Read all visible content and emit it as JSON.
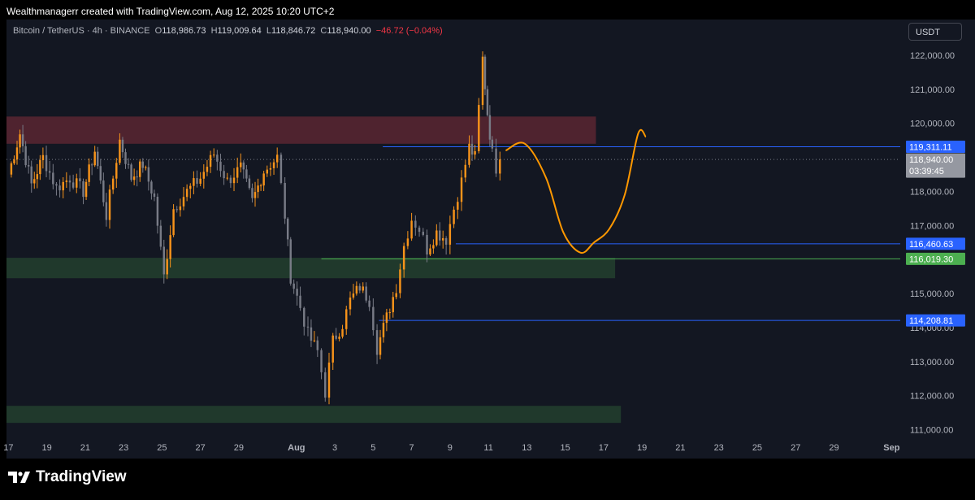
{
  "header": {
    "attribution": "Wealthmanagerr created with TradingView.com, Aug 12, 2025 10:20 UTC+2"
  },
  "legend": {
    "symbol": "Bitcoin / TetherUS · 4h · BINANCE",
    "open_label": "O",
    "open": "118,986.73",
    "high_label": "H",
    "high": "119,009.64",
    "low_label": "L",
    "low": "118,846.72",
    "close_label": "C",
    "close": "118,940.00",
    "change": "−46.72 (−0.04%)"
  },
  "currency_button": "USDT",
  "footer": {
    "brand": "TradingView"
  },
  "colors": {
    "background": "#131722",
    "up_candle": "#f7931a",
    "down_candle": "#787b86",
    "resistance_zone": "#5a2631",
    "support_zone": "#233f2e",
    "blue_line": "#2962ff",
    "green_line": "#4caf50",
    "projection": "#ff9800"
  },
  "chart_data": {
    "type": "candlestick",
    "title": "Bitcoin / TetherUS · 4h · BINANCE",
    "y_axis": {
      "range": [
        110750,
        123050
      ],
      "ticks": [
        111000,
        112000,
        113000,
        114000,
        115000,
        116000,
        117000,
        118000,
        119000,
        120000,
        121000,
        122000
      ],
      "tick_labels": [
        "111,000.00",
        "112,000.00",
        "113,000.00",
        "114,000.00",
        "115,000.00",
        "116,000.00",
        "117,000.00",
        "118,000.00",
        "119,000.00",
        "120,000.00",
        "121,000.00",
        "122,000.00"
      ],
      "side": "right"
    },
    "x_axis": {
      "range_days": [
        16.9,
        32.4
      ],
      "ticks": [
        17,
        19,
        21,
        23,
        25,
        27,
        29,
        32,
        34,
        36,
        38,
        40,
        42,
        44,
        46,
        48,
        50,
        52,
        54,
        56,
        58,
        60,
        63
      ],
      "tick_labels": [
        "17",
        "19",
        "21",
        "23",
        "25",
        "27",
        "29",
        "Aug",
        "3",
        "5",
        "7",
        "9",
        "11",
        "13",
        "15",
        "17",
        "19",
        "21",
        "23",
        "25",
        "27",
        "29",
        "Sep"
      ],
      "bold_labels": [
        "Aug",
        "Sep"
      ],
      "note": "tick values are days counted from July 1"
    },
    "grid": false,
    "waypoints": [
      [
        17.0,
        118500
      ],
      [
        17.6,
        119700
      ],
      [
        18.2,
        118200
      ],
      [
        18.8,
        119000
      ],
      [
        19.5,
        118100
      ],
      [
        20.2,
        118400
      ],
      [
        20.9,
        118000
      ],
      [
        21.5,
        119200
      ],
      [
        22.1,
        117300
      ],
      [
        22.8,
        119500
      ],
      [
        23.4,
        118400
      ],
      [
        24.0,
        118800
      ],
      [
        24.6,
        117800
      ],
      [
        25.1,
        115500
      ],
      [
        25.6,
        117500
      ],
      [
        26.3,
        118000
      ],
      [
        27.0,
        118400
      ],
      [
        27.7,
        119100
      ],
      [
        28.4,
        118300
      ],
      [
        29.1,
        118700
      ],
      [
        29.7,
        117700
      ],
      [
        30.3,
        118600
      ],
      [
        31.0,
        119000
      ],
      [
        31.4,
        117300
      ],
      [
        31.7,
        115500
      ],
      [
        32.2,
        114600
      ],
      [
        32.6,
        113800
      ],
      [
        33.1,
        113300
      ],
      [
        33.5,
        112100
      ],
      [
        33.9,
        113600
      ],
      [
        34.4,
        114100
      ],
      [
        34.8,
        114800
      ],
      [
        35.3,
        115200
      ],
      [
        35.8,
        114800
      ],
      [
        36.2,
        113400
      ],
      [
        36.7,
        114300
      ],
      [
        37.2,
        115200
      ],
      [
        37.6,
        116400
      ],
      [
        38.0,
        117200
      ],
      [
        38.4,
        116900
      ],
      [
        38.8,
        116300
      ],
      [
        39.3,
        116800
      ],
      [
        39.8,
        116600
      ],
      [
        40.2,
        117500
      ],
      [
        40.6,
        118300
      ],
      [
        41.0,
        119300
      ],
      [
        41.3,
        119000
      ],
      [
        41.7,
        121900
      ],
      [
        41.95,
        120300
      ],
      [
        42.2,
        119100
      ],
      [
        42.4,
        118700
      ],
      [
        42.6,
        118940
      ]
    ],
    "zones": [
      {
        "name": "resistance",
        "y_top": 120200,
        "y_bottom": 119400,
        "x_start": 16.9,
        "x_end": 47.6,
        "color": "#5a2631"
      },
      {
        "name": "support",
        "y_top": 116050,
        "y_bottom": 115450,
        "x_start": 16.9,
        "x_end": 48.6,
        "color": "#233f2e"
      },
      {
        "name": "demand",
        "y_top": 111700,
        "y_bottom": 111200,
        "x_start": 16.9,
        "x_end": 48.9,
        "color": "#233f2e"
      }
    ],
    "levels": [
      {
        "price": 119311.11,
        "label": "119,311.11",
        "x_start": 36.5,
        "color": "#2962ff",
        "style": "solid",
        "badge_bg": "#2962ff"
      },
      {
        "price": 118940.0,
        "label": "118,940.00",
        "sublabel": "03:39:45",
        "x_start": 16.9,
        "color": "#787b86",
        "style": "dotted",
        "badge_bg": "#9598a1"
      },
      {
        "price": 116460.63,
        "label": "116,460.63",
        "x_start": 40.3,
        "color": "#2962ff",
        "style": "solid",
        "badge_bg": "#2962ff"
      },
      {
        "price": 116019.3,
        "label": "116,019.30",
        "x_start": 33.3,
        "color": "#4caf50",
        "style": "solid",
        "badge_bg": "#4caf50"
      },
      {
        "price": 114208.81,
        "label": "114,208.81",
        "x_start": 36.3,
        "color": "#2962ff",
        "style": "solid",
        "badge_bg": "#2962ff"
      }
    ],
    "projection": {
      "color": "#ff9800",
      "points": [
        [
          42.9,
          119200
        ],
        [
          43.9,
          119400
        ],
        [
          45.0,
          118400
        ],
        [
          45.9,
          116800
        ],
        [
          46.8,
          116200
        ],
        [
          47.5,
          116500
        ],
        [
          48.3,
          116900
        ],
        [
          49.1,
          117900
        ],
        [
          49.8,
          119700
        ],
        [
          50.2,
          119600
        ]
      ]
    }
  }
}
